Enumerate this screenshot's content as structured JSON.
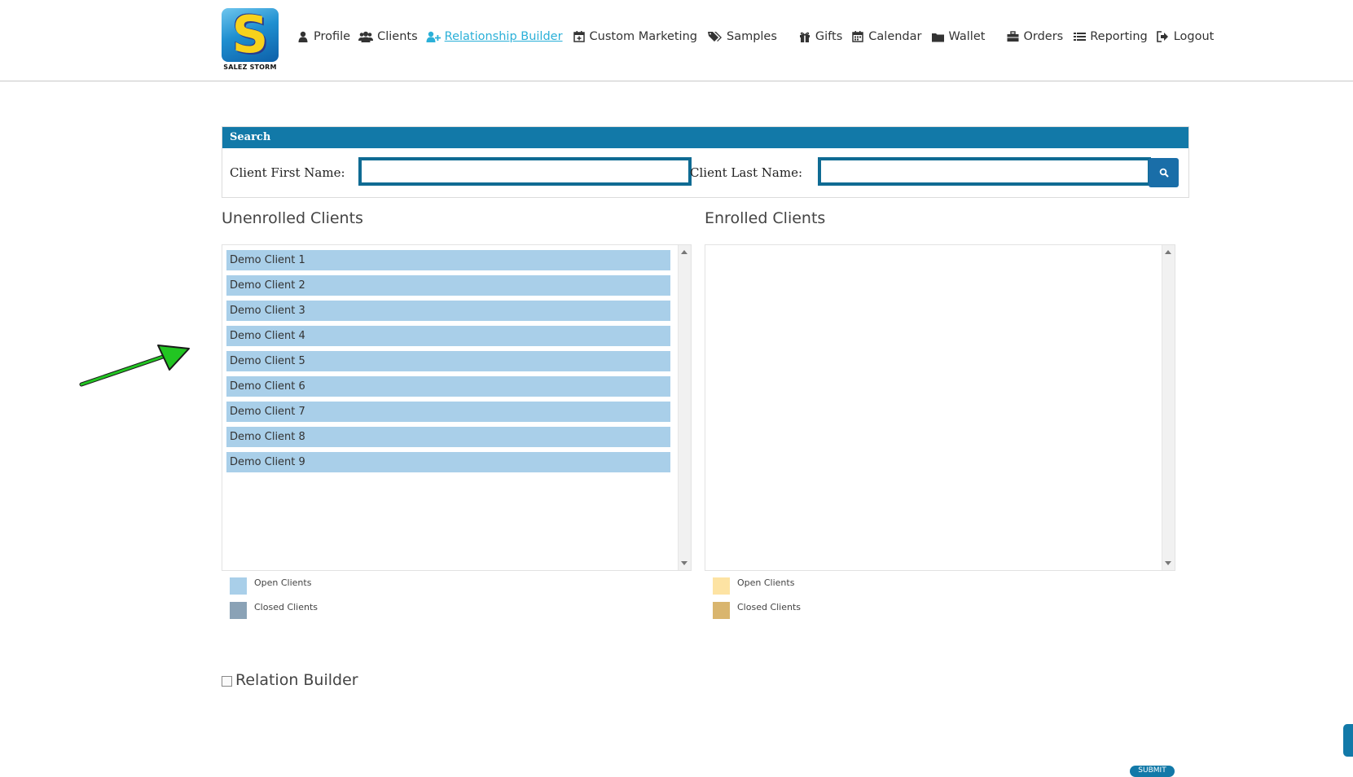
{
  "brand": {
    "logo_letter": "S",
    "logo_text": "SALEZ STORM"
  },
  "nav": [
    {
      "key": "profile",
      "label": "Profile",
      "icon": "user-icon"
    },
    {
      "key": "clients",
      "label": "Clients",
      "icon": "users-icon"
    },
    {
      "key": "relationship",
      "label": "Relationship Builder",
      "icon": "user-plus-icon",
      "active": true
    },
    {
      "key": "marketing",
      "label": "Custom Marketing",
      "icon": "calendar-plus-icon"
    },
    {
      "key": "samples",
      "label": "Samples",
      "icon": "tags-icon"
    },
    {
      "key": "gifts",
      "label": "Gifts",
      "icon": "gift-icon"
    },
    {
      "key": "calendar",
      "label": "Calendar",
      "icon": "calendar-icon"
    },
    {
      "key": "wallet",
      "label": "Wallet",
      "icon": "folder-icon"
    },
    {
      "key": "orders",
      "label": "Orders",
      "icon": "briefcase-icon"
    },
    {
      "key": "reporting",
      "label": "Reporting",
      "icon": "list-icon"
    },
    {
      "key": "logout",
      "label": "Logout",
      "icon": "sign-out-icon"
    }
  ],
  "search": {
    "title": "Search",
    "first_label": "Client First Name:",
    "first_value": "",
    "last_label": "Client Last Name:",
    "last_value": ""
  },
  "unenrolled": {
    "title": "Unenrolled Clients",
    "items": [
      "Demo Client 1",
      "Demo Client 2",
      "Demo Client 3",
      "Demo Client 4",
      "Demo Client 5",
      "Demo Client 6",
      "Demo Client 7",
      "Demo Client 8",
      "Demo Client 9"
    ],
    "legend": {
      "open": "Open Clients",
      "closed": "Closed Clients",
      "open_color": "#a9cfe9",
      "closed_color": "#8aa2b6"
    }
  },
  "enrolled": {
    "title": "Enrolled Clients",
    "items": [],
    "legend": {
      "open": "Open Clients",
      "closed": "Closed Clients",
      "open_color": "#fde3a3",
      "closed_color": "#d9b56e"
    }
  },
  "relation_builder": {
    "label": "Relation Builder",
    "checked": false
  },
  "footer": {
    "submit_label": "SUBMIT"
  },
  "colors": {
    "accent": "#1279a8",
    "active_nav": "#2bb0d8",
    "arrow": "#22c522"
  }
}
